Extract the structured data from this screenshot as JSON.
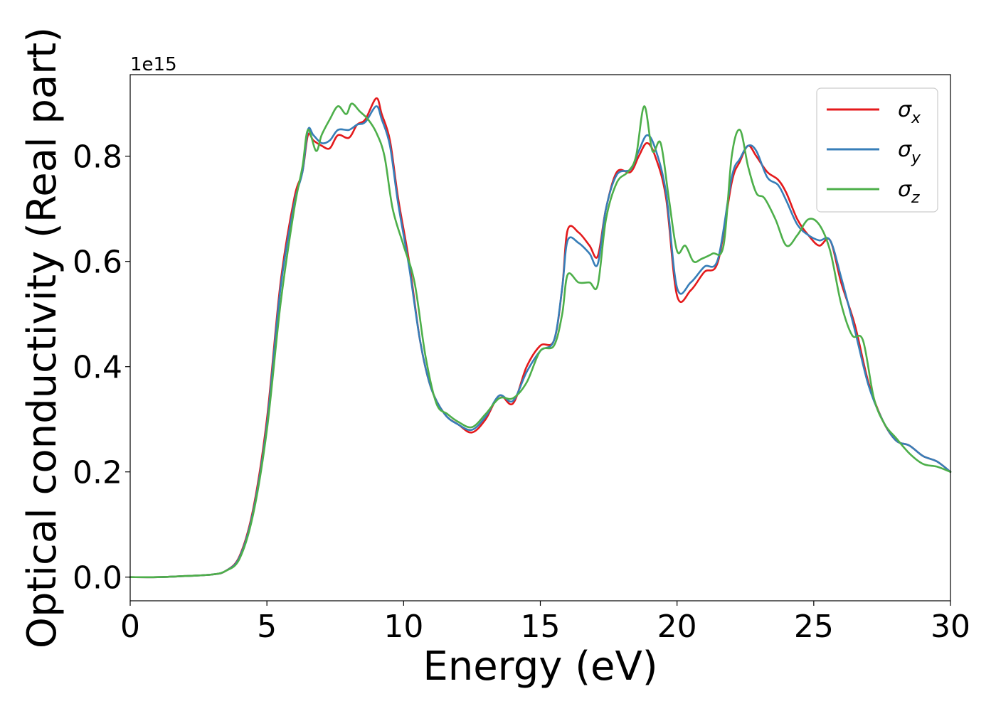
{
  "chart_data": {
    "type": "line",
    "title": "",
    "xlabel": "Energy (eV)",
    "ylabel": "Optical conductivity (Real part)",
    "y_offset_label": "1e15",
    "y_scale": 1000000000000000.0,
    "xlim": [
      0,
      30
    ],
    "ylim": [
      -0.045,
      0.955
    ],
    "xticks": [
      0,
      5,
      10,
      15,
      20,
      25,
      30
    ],
    "yticks": [
      0.0,
      0.2,
      0.4,
      0.6,
      0.8
    ],
    "ytick_labels": [
      "0.0",
      "0.2",
      "0.4",
      "0.6",
      "0.8"
    ],
    "grid": false,
    "legend": "top-right",
    "series": [
      {
        "name": "σx",
        "base": "σ",
        "sub": "x",
        "color": "#e41a1c",
        "x": [
          0,
          1,
          2,
          3,
          3.5,
          4,
          4.5,
          5,
          5.5,
          6,
          6.3,
          6.5,
          6.7,
          7,
          7.3,
          7.6,
          8,
          8.3,
          8.6,
          9,
          9.2,
          9.5,
          9.8,
          10.2,
          10.6,
          11,
          11.5,
          12,
          12.5,
          13,
          13.5,
          14,
          14.5,
          15,
          15.5,
          15.8,
          16,
          16.4,
          16.8,
          17.1,
          17.4,
          17.8,
          18.3,
          18.6,
          18.9,
          19.2,
          19.6,
          20,
          20.5,
          21,
          21.5,
          22,
          22.3,
          22.6,
          22.9,
          23.3,
          23.7,
          24,
          24.4,
          24.8,
          25.2,
          25.6,
          26,
          26.5,
          27,
          27.5,
          28,
          28.5,
          29,
          29.5,
          30
        ],
        "y": [
          0,
          0,
          0.002,
          0.005,
          0.012,
          0.04,
          0.13,
          0.3,
          0.56,
          0.72,
          0.77,
          0.84,
          0.83,
          0.82,
          0.815,
          0.84,
          0.835,
          0.86,
          0.87,
          0.91,
          0.88,
          0.83,
          0.72,
          0.6,
          0.45,
          0.36,
          0.31,
          0.29,
          0.275,
          0.3,
          0.345,
          0.33,
          0.4,
          0.44,
          0.45,
          0.55,
          0.66,
          0.655,
          0.63,
          0.61,
          0.7,
          0.77,
          0.77,
          0.8,
          0.825,
          0.8,
          0.72,
          0.535,
          0.545,
          0.58,
          0.6,
          0.75,
          0.79,
          0.82,
          0.8,
          0.77,
          0.755,
          0.73,
          0.68,
          0.65,
          0.63,
          0.64,
          0.56,
          0.48,
          0.37,
          0.3,
          0.26,
          0.25,
          0.23,
          0.22,
          0.2
        ]
      },
      {
        "name": "σy",
        "base": "σ",
        "sub": "y",
        "color": "#377eb8",
        "x": [
          0,
          1,
          2,
          3,
          3.5,
          4,
          4.5,
          5,
          5.5,
          6,
          6.3,
          6.5,
          6.7,
          7,
          7.3,
          7.6,
          8,
          8.3,
          8.6,
          9,
          9.2,
          9.5,
          9.8,
          10.2,
          10.6,
          11,
          11.5,
          12,
          12.5,
          13,
          13.5,
          14,
          14.5,
          15,
          15.5,
          15.8,
          16,
          16.4,
          16.8,
          17.1,
          17.4,
          17.8,
          18.3,
          18.6,
          18.9,
          19.2,
          19.6,
          20,
          20.5,
          21,
          21.5,
          22,
          22.3,
          22.6,
          22.9,
          23.3,
          23.7,
          24,
          24.4,
          24.8,
          25.2,
          25.6,
          26,
          26.5,
          27,
          27.5,
          28,
          28.5,
          29,
          29.5,
          30
        ],
        "y": [
          0,
          0,
          0.002,
          0.005,
          0.012,
          0.038,
          0.125,
          0.29,
          0.55,
          0.71,
          0.77,
          0.85,
          0.84,
          0.825,
          0.83,
          0.85,
          0.85,
          0.86,
          0.865,
          0.895,
          0.87,
          0.82,
          0.71,
          0.59,
          0.45,
          0.36,
          0.31,
          0.29,
          0.28,
          0.305,
          0.345,
          0.335,
          0.39,
          0.43,
          0.45,
          0.55,
          0.64,
          0.635,
          0.615,
          0.595,
          0.7,
          0.765,
          0.775,
          0.81,
          0.84,
          0.815,
          0.73,
          0.55,
          0.56,
          0.59,
          0.605,
          0.76,
          0.795,
          0.82,
          0.81,
          0.76,
          0.745,
          0.715,
          0.67,
          0.65,
          0.64,
          0.64,
          0.57,
          0.47,
          0.365,
          0.3,
          0.26,
          0.25,
          0.23,
          0.22,
          0.2
        ]
      },
      {
        "name": "σz",
        "base": "σ",
        "sub": "z",
        "color": "#4daf4a",
        "x": [
          0,
          1,
          2,
          3,
          3.5,
          4,
          4.5,
          5,
          5.5,
          6,
          6.3,
          6.5,
          6.8,
          7,
          7.3,
          7.6,
          7.9,
          8.1,
          8.4,
          8.7,
          9,
          9.3,
          9.6,
          10,
          10.4,
          10.8,
          11.2,
          11.6,
          12,
          12.5,
          13,
          13.5,
          14,
          14.5,
          15,
          15.5,
          15.8,
          16,
          16.4,
          16.8,
          17.1,
          17.4,
          17.8,
          18.2,
          18.5,
          18.8,
          19.1,
          19.4,
          19.7,
          20,
          20.3,
          20.6,
          20.9,
          21.3,
          21.7,
          22,
          22.3,
          22.6,
          22.9,
          23.2,
          23.6,
          24,
          24.4,
          24.8,
          25.2,
          25.6,
          26,
          26.4,
          26.8,
          27.2,
          27.6,
          28,
          28.5,
          29,
          29.5,
          30
        ],
        "y": [
          0,
          0,
          0.002,
          0.005,
          0.012,
          0.035,
          0.12,
          0.28,
          0.52,
          0.7,
          0.78,
          0.85,
          0.81,
          0.84,
          0.87,
          0.895,
          0.88,
          0.9,
          0.885,
          0.87,
          0.845,
          0.8,
          0.7,
          0.63,
          0.56,
          0.42,
          0.33,
          0.31,
          0.295,
          0.285,
          0.31,
          0.34,
          0.34,
          0.37,
          0.43,
          0.44,
          0.5,
          0.575,
          0.56,
          0.56,
          0.555,
          0.68,
          0.75,
          0.77,
          0.8,
          0.895,
          0.81,
          0.825,
          0.72,
          0.62,
          0.63,
          0.6,
          0.605,
          0.615,
          0.63,
          0.8,
          0.85,
          0.78,
          0.73,
          0.72,
          0.68,
          0.63,
          0.65,
          0.68,
          0.67,
          0.62,
          0.52,
          0.46,
          0.45,
          0.34,
          0.29,
          0.265,
          0.235,
          0.215,
          0.21,
          0.2
        ]
      }
    ]
  }
}
